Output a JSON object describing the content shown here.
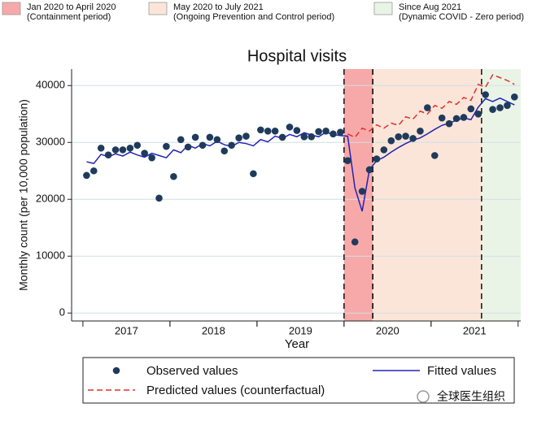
{
  "chart_data": {
    "type": "line",
    "title": "Hospital visits",
    "x_label": "Year",
    "y_label": "Monthly count (per 10,000 population)",
    "xlim": [
      2016.87,
      2022.03
    ],
    "ylim": [
      -1400,
      42900
    ],
    "yticks": [
      0,
      10000,
      20000,
      30000,
      40000
    ],
    "xticks": [
      {
        "value": 2017.5,
        "label": "2017"
      },
      {
        "value": 2018.5,
        "label": "2018"
      },
      {
        "value": 2019.5,
        "label": "2019"
      },
      {
        "value": 2020.5,
        "label": "2020"
      },
      {
        "value": 2021.5,
        "label": "2021"
      }
    ],
    "grid": true,
    "periods": [
      {
        "lines": [
          "Jan 2020 to April 2020",
          "(Containment period)"
        ],
        "start": 2020.0,
        "end": 2020.33,
        "color": "#f7a9a9"
      },
      {
        "lines": [
          "May 2020 to July 2021",
          "(Ongoing Prevention and Control period)"
        ],
        "start": 2020.33,
        "end": 2021.58,
        "color": "#fbe5d8"
      },
      {
        "lines": [
          "Since Aug 2021",
          "(Dynamic COVID - Zero period)"
        ],
        "start": 2021.58,
        "end": 2022.03,
        "color": "#eaf4e6"
      }
    ],
    "x": [
      2017.042,
      2017.125,
      2017.208,
      2017.292,
      2017.375,
      2017.458,
      2017.542,
      2017.625,
      2017.708,
      2017.792,
      2017.875,
      2017.958,
      2018.042,
      2018.125,
      2018.208,
      2018.292,
      2018.375,
      2018.458,
      2018.542,
      2018.625,
      2018.708,
      2018.792,
      2018.875,
      2018.958,
      2019.042,
      2019.125,
      2019.208,
      2019.292,
      2019.375,
      2019.458,
      2019.542,
      2019.625,
      2019.708,
      2019.792,
      2019.875,
      2019.958,
      2020.042,
      2020.125,
      2020.208,
      2020.292,
      2020.375,
      2020.458,
      2020.542,
      2020.625,
      2020.708,
      2020.792,
      2020.875,
      2020.958,
      2021.042,
      2021.125,
      2021.208,
      2021.292,
      2021.375,
      2021.458,
      2021.542,
      2021.625,
      2021.708,
      2021.792,
      2021.875,
      2021.958
    ],
    "series": [
      {
        "name": "Observed values",
        "color": "#1f3b5c",
        "style": "points",
        "values": [
          24200,
          25000,
          29000,
          27800,
          28700,
          28700,
          29000,
          29500,
          28100,
          27300,
          20200,
          29300,
          24000,
          30500,
          29200,
          30900,
          29500,
          30900,
          30500,
          28500,
          29500,
          30800,
          31100,
          24500,
          32200,
          32000,
          32000,
          30900,
          32700,
          32100,
          31000,
          31000,
          31900,
          32000,
          31500,
          31800,
          26800,
          12500,
          21400,
          25200,
          27100,
          28700,
          30300,
          31000,
          31100,
          30700,
          32000,
          36100,
          27700,
          34300,
          33300,
          34200,
          34400,
          35900,
          35000,
          38400,
          35800,
          36100,
          36500,
          38000
        ]
      },
      {
        "name": "Fitted values",
        "color": "#2323b4",
        "style": "solid",
        "values": [
          26600,
          26300,
          27900,
          27500,
          28000,
          27600,
          28300,
          27800,
          27400,
          28100,
          27700,
          27300,
          28700,
          28200,
          29500,
          29000,
          29800,
          29400,
          30200,
          29600,
          29300,
          30000,
          29800,
          29400,
          30500,
          30100,
          31100,
          30700,
          31400,
          31000,
          31700,
          31300,
          31000,
          31800,
          31400,
          31200,
          31100,
          22000,
          17900,
          25200,
          26800,
          27400,
          28300,
          29100,
          29800,
          30400,
          30800,
          31500,
          32300,
          33000,
          33400,
          33900,
          34300,
          34000,
          36200,
          37700,
          37200,
          37800,
          37200,
          36600
        ]
      },
      {
        "name": "Predicted values (counterfactual)",
        "color": "#e0302c",
        "style": "dashed",
        "values": [
          null,
          null,
          null,
          null,
          null,
          null,
          null,
          null,
          null,
          null,
          null,
          null,
          null,
          null,
          null,
          null,
          null,
          null,
          null,
          null,
          null,
          null,
          null,
          null,
          null,
          null,
          null,
          null,
          null,
          null,
          null,
          null,
          null,
          null,
          null,
          null,
          31500,
          30900,
          32500,
          32000,
          33100,
          32500,
          33400,
          33000,
          34500,
          34100,
          35500,
          35000,
          36500,
          36000,
          37200,
          36700,
          37900,
          37400,
          40200,
          39700,
          41900,
          41400,
          40900,
          40200
        ]
      }
    ],
    "watermark": "全球医生组织"
  }
}
